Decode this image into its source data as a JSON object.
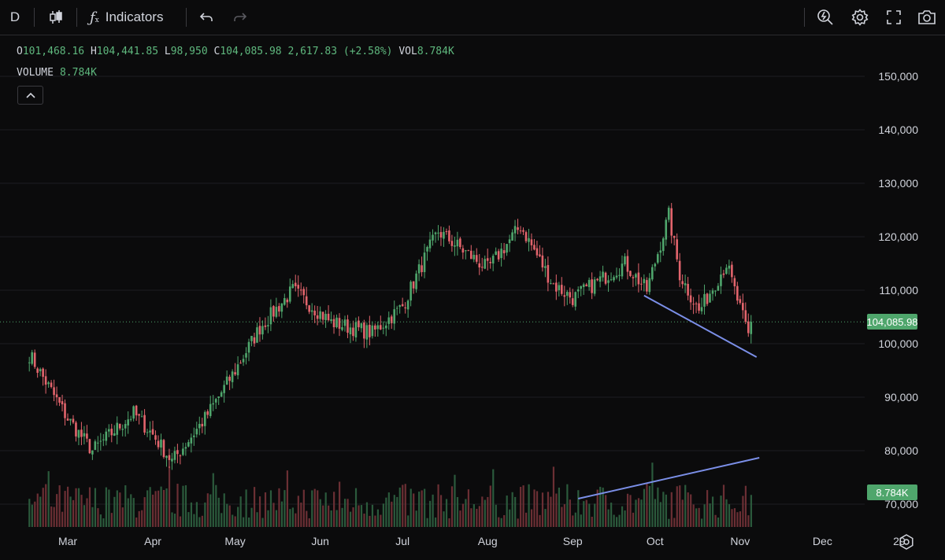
{
  "toolbar": {
    "interval": "D",
    "indicators_label": "Indicators"
  },
  "legend": {
    "o_label": "O",
    "o_value": "101,468.16",
    "h_label": "H",
    "h_value": "104,441.85",
    "l_label": "L",
    "l_value": "98,950",
    "c_label": "C",
    "c_value": "104,085.98",
    "change": "2,617.83 (+2.58%)",
    "vol_label": "VOL",
    "vol_value": "8.784K"
  },
  "volume_legend": {
    "label": "VOLUME",
    "value": "8.784K"
  },
  "price_axis": {
    "ticks": [
      "150,000",
      "140,000",
      "130,000",
      "120,000",
      "110,000",
      "100,000",
      "90,000",
      "80,000",
      "70,000"
    ]
  },
  "time_axis": {
    "ticks": [
      "Mar",
      "Apr",
      "May",
      "Jun",
      "Jul",
      "Aug",
      "Sep",
      "Oct",
      "Nov",
      "Dec",
      "29"
    ]
  },
  "last_price_tag": "104,085.98",
  "volume_tag": "8.784K",
  "colors": {
    "up": "#4fa66c",
    "down": "#e2646c",
    "trendline": "#7b8fe8",
    "background": "#0b0b0c"
  },
  "chart_data": {
    "type": "candlestick",
    "symbol_interval": "D",
    "y_range": [
      65000,
      155000
    ],
    "anchors": [
      {
        "date": "Feb 15",
        "close": 98000
      },
      {
        "date": "Mar 1",
        "close": 86000
      },
      {
        "date": "Mar 10",
        "close": 80000
      },
      {
        "date": "Mar 25",
        "close": 87000
      },
      {
        "date": "Apr 1",
        "close": 83000
      },
      {
        "date": "Apr 8",
        "close": 78000
      },
      {
        "date": "Apr 20",
        "close": 86000
      },
      {
        "date": "May 1",
        "close": 95000
      },
      {
        "date": "May 10",
        "close": 103000
      },
      {
        "date": "May 22",
        "close": 110000
      },
      {
        "date": "Jun 5",
        "close": 104000
      },
      {
        "date": "Jun 20",
        "close": 102000
      },
      {
        "date": "Jul 1",
        "close": 107000
      },
      {
        "date": "Jul 10",
        "close": 117000
      },
      {
        "date": "Jul 14",
        "close": 121000
      },
      {
        "date": "Aug 1",
        "close": 114000
      },
      {
        "date": "Aug 13",
        "close": 122000
      },
      {
        "date": "Aug 25",
        "close": 111000
      },
      {
        "date": "Sep 1",
        "close": 108500
      },
      {
        "date": "Sep 20",
        "close": 115000
      },
      {
        "date": "Sep 28",
        "close": 110000
      },
      {
        "date": "Oct 6",
        "close": 124000
      },
      {
        "date": "Oct 10",
        "close": 113000
      },
      {
        "date": "Oct 17",
        "close": 106000
      },
      {
        "date": "Oct 27",
        "close": 115000
      },
      {
        "date": "Nov 4",
        "close": 101500
      },
      {
        "date": "Nov 5",
        "close": 104085.98
      }
    ],
    "trendlines": [
      {
        "pane": "price",
        "from": {
          "date": "Sep 27",
          "value": 109000
        },
        "to": {
          "date": "Nov 7",
          "value": 97500
        }
      },
      {
        "pane": "volume",
        "from": {
          "date": "Sep 3"
        },
        "to": {
          "date": "Nov 8"
        },
        "direction": "rising"
      }
    ]
  }
}
